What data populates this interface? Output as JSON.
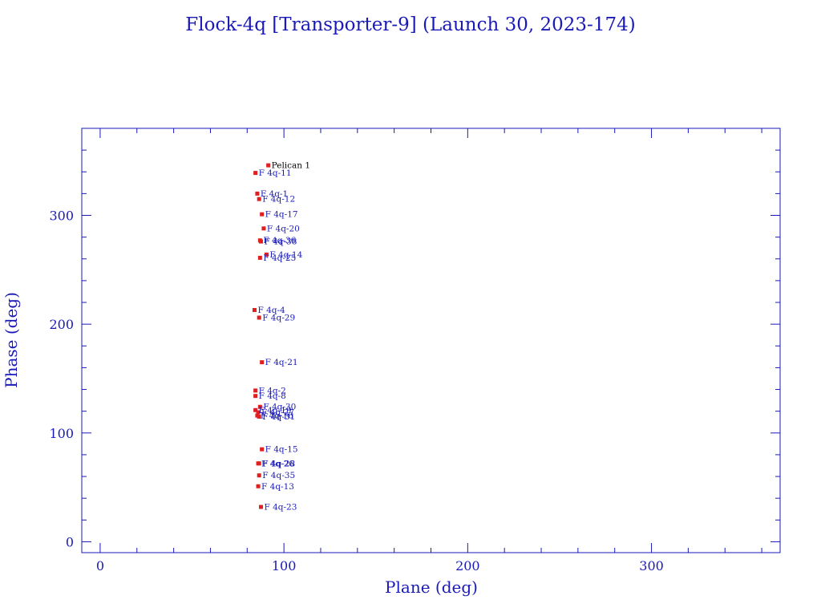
{
  "chart_data": {
    "type": "scatter",
    "title": "Flock-4q [Transporter-9] (Launch 30, 2023-174)",
    "xlabel": "Plane (deg)",
    "ylabel": "Phase (deg)",
    "xlim": [
      -10,
      370
    ],
    "ylim": [
      -10,
      380
    ],
    "xticks": [
      0,
      100,
      200,
      300
    ],
    "yticks": [
      0,
      100,
      200,
      300
    ],
    "grid": false,
    "marker_color": "#e02020",
    "label_color": "#1a1ab8",
    "axis_color": "#1a1ab8",
    "points": [
      {
        "label": "Pelican 1",
        "x": 91.5,
        "y": 346
      },
      {
        "label": "F 4q-11",
        "x": 84.5,
        "y": 339
      },
      {
        "label": "F 4q-1",
        "x": 85.5,
        "y": 320
      },
      {
        "label": "F 4q-12",
        "x": 86.5,
        "y": 315
      },
      {
        "label": "F 4q-17",
        "x": 88,
        "y": 301
      },
      {
        "label": "F 4q-20",
        "x": 89,
        "y": 288
      },
      {
        "label": "F 4q-36",
        "x": 87,
        "y": 277
      },
      {
        "label": "F 4q-38",
        "x": 87.5,
        "y": 276
      },
      {
        "label": "F 4q-14",
        "x": 90.5,
        "y": 264
      },
      {
        "label": "F 4q-25",
        "x": 87,
        "y": 261
      },
      {
        "label": "F 4q-4",
        "x": 84,
        "y": 213
      },
      {
        "label": "F 4q-29",
        "x": 86.5,
        "y": 206
      },
      {
        "label": "F 4q-21",
        "x": 88,
        "y": 165
      },
      {
        "label": "F 4q-2",
        "x": 84.5,
        "y": 139
      },
      {
        "label": "F 4q-8",
        "x": 84.5,
        "y": 134
      },
      {
        "label": "F 4q-30",
        "x": 87,
        "y": 124
      },
      {
        "label": "F 4q-19",
        "x": 84.5,
        "y": 121
      },
      {
        "label": "F 4q-27",
        "x": 86,
        "y": 119
      },
      {
        "label": "F 4q-16",
        "x": 85.5,
        "y": 116
      },
      {
        "label": "F 4q-31",
        "x": 86.5,
        "y": 115
      },
      {
        "label": "F 4q-15",
        "x": 88,
        "y": 85
      },
      {
        "label": "F 4q-26",
        "x": 86,
        "y": 72
      },
      {
        "label": "F 4q-28",
        "x": 86.5,
        "y": 72
      },
      {
        "label": "F 4q-35",
        "x": 86.5,
        "y": 61
      },
      {
        "label": "F 4q-13",
        "x": 86,
        "y": 51
      },
      {
        "label": "F 4q-23",
        "x": 87.5,
        "y": 32
      }
    ]
  }
}
